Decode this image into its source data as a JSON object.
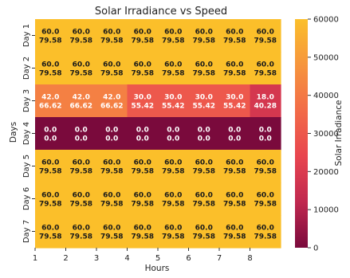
{
  "chart_data": {
    "type": "heatmap",
    "title": "Solar Irradiance vs Speed",
    "xlabel": "Hours",
    "ylabel": "Days",
    "colorbar_label": "Solar Irradiance",
    "colorbar_range": [
      0,
      60000
    ],
    "colorbar_ticks": [
      "0",
      "10000",
      "20000",
      "30000",
      "40000",
      "50000",
      "60000"
    ],
    "x_tick_labels": [
      "1",
      "2",
      "3",
      "4",
      "5",
      "6",
      "7",
      "8"
    ],
    "rows": [
      "Day 1",
      "Day 2",
      "Day 3",
      "Day 4",
      "Day 5",
      "Day 6",
      "Day 7"
    ],
    "colormap": [
      "#7a0a3c",
      "#c0284f",
      "#e8454f",
      "#f26b48",
      "#f6953d",
      "#fbbf2a"
    ],
    "cells": [
      [
        {
          "top": "60.0",
          "bottom": "79.58",
          "color_value": 60000
        },
        {
          "top": "60.0",
          "bottom": "79.58",
          "color_value": 60000
        },
        {
          "top": "60.0",
          "bottom": "79.58",
          "color_value": 60000
        },
        {
          "top": "60.0",
          "bottom": "79.58",
          "color_value": 60000
        },
        {
          "top": "60.0",
          "bottom": "79.58",
          "color_value": 60000
        },
        {
          "top": "60.0",
          "bottom": "79.58",
          "color_value": 60000
        },
        {
          "top": "60.0",
          "bottom": "79.58",
          "color_value": 60000
        },
        {
          "top": "60.0",
          "bottom": "79.58",
          "color_value": 60000
        }
      ],
      [
        {
          "top": "60.0",
          "bottom": "79.58",
          "color_value": 60000
        },
        {
          "top": "60.0",
          "bottom": "79.58",
          "color_value": 60000
        },
        {
          "top": "60.0",
          "bottom": "79.58",
          "color_value": 60000
        },
        {
          "top": "60.0",
          "bottom": "79.58",
          "color_value": 60000
        },
        {
          "top": "60.0",
          "bottom": "79.58",
          "color_value": 60000
        },
        {
          "top": "60.0",
          "bottom": "79.58",
          "color_value": 60000
        },
        {
          "top": "60.0",
          "bottom": "79.58",
          "color_value": 60000
        },
        {
          "top": "60.0",
          "bottom": "79.58",
          "color_value": 60000
        }
      ],
      [
        {
          "top": "42.0",
          "bottom": "66.62",
          "color_value": 42000
        },
        {
          "top": "42.0",
          "bottom": "66.62",
          "color_value": 42000
        },
        {
          "top": "42.0",
          "bottom": "66.62",
          "color_value": 42000
        },
        {
          "top": "30.0",
          "bottom": "55.42",
          "color_value": 30000
        },
        {
          "top": "30.0",
          "bottom": "55.42",
          "color_value": 30000
        },
        {
          "top": "30.0",
          "bottom": "55.42",
          "color_value": 30000
        },
        {
          "top": "30.0",
          "bottom": "55.42",
          "color_value": 30000
        },
        {
          "top": "18.0",
          "bottom": "40.28",
          "color_value": 18000
        }
      ],
      [
        {
          "top": "0.0",
          "bottom": "0.0",
          "color_value": 0
        },
        {
          "top": "0.0",
          "bottom": "0.0",
          "color_value": 0
        },
        {
          "top": "0.0",
          "bottom": "0.0",
          "color_value": 0
        },
        {
          "top": "0.0",
          "bottom": "0.0",
          "color_value": 0
        },
        {
          "top": "0.0",
          "bottom": "0.0",
          "color_value": 0
        },
        {
          "top": "0.0",
          "bottom": "0.0",
          "color_value": 0
        },
        {
          "top": "0.0",
          "bottom": "0.0",
          "color_value": 0
        },
        {
          "top": "0.0",
          "bottom": "0.0",
          "color_value": 0
        }
      ],
      [
        {
          "top": "60.0",
          "bottom": "79.58",
          "color_value": 60000
        },
        {
          "top": "60.0",
          "bottom": "79.58",
          "color_value": 60000
        },
        {
          "top": "60.0",
          "bottom": "79.58",
          "color_value": 60000
        },
        {
          "top": "60.0",
          "bottom": "79.58",
          "color_value": 60000
        },
        {
          "top": "60.0",
          "bottom": "79.58",
          "color_value": 60000
        },
        {
          "top": "60.0",
          "bottom": "79.58",
          "color_value": 60000
        },
        {
          "top": "60.0",
          "bottom": "79.58",
          "color_value": 60000
        },
        {
          "top": "60.0",
          "bottom": "79.58",
          "color_value": 60000
        }
      ],
      [
        {
          "top": "60.0",
          "bottom": "79.58",
          "color_value": 60000
        },
        {
          "top": "60.0",
          "bottom": "79.58",
          "color_value": 60000
        },
        {
          "top": "60.0",
          "bottom": "79.58",
          "color_value": 60000
        },
        {
          "top": "60.0",
          "bottom": "79.58",
          "color_value": 60000
        },
        {
          "top": "60.0",
          "bottom": "79.58",
          "color_value": 60000
        },
        {
          "top": "60.0",
          "bottom": "79.58",
          "color_value": 60000
        },
        {
          "top": "60.0",
          "bottom": "79.58",
          "color_value": 60000
        },
        {
          "top": "60.0",
          "bottom": "79.58",
          "color_value": 60000
        }
      ],
      [
        {
          "top": "60.0",
          "bottom": "79.58",
          "color_value": 60000
        },
        {
          "top": "60.0",
          "bottom": "79.58",
          "color_value": 60000
        },
        {
          "top": "60.0",
          "bottom": "79.58",
          "color_value": 60000
        },
        {
          "top": "60.0",
          "bottom": "79.58",
          "color_value": 60000
        },
        {
          "top": "60.0",
          "bottom": "79.58",
          "color_value": 60000
        },
        {
          "top": "60.0",
          "bottom": "79.58",
          "color_value": 60000
        },
        {
          "top": "60.0",
          "bottom": "79.58",
          "color_value": 60000
        },
        {
          "top": "60.0",
          "bottom": "79.58",
          "color_value": 60000
        }
      ]
    ],
    "grid": false,
    "legend": "colorbar-right"
  }
}
